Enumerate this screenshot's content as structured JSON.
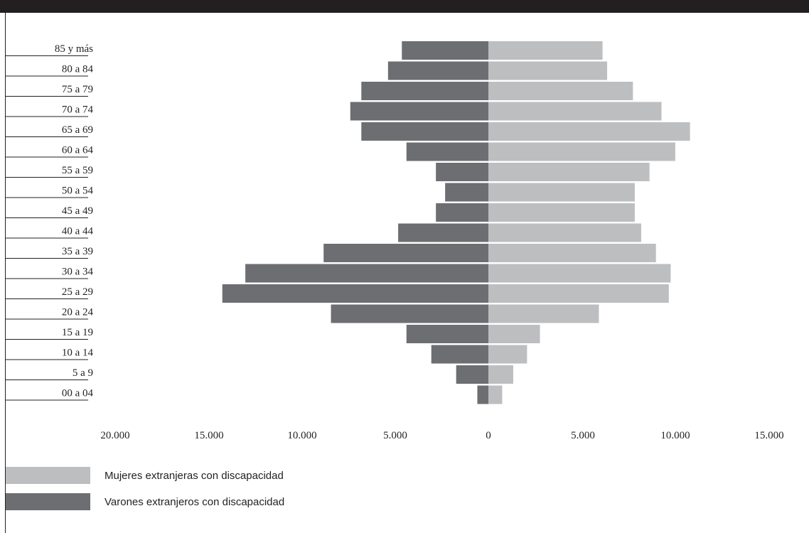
{
  "colors": {
    "female": "#bcbec0",
    "male": "#6d6e71",
    "text": "#231f20",
    "rule": "#231f20"
  },
  "legend": {
    "female_label": "Mujeres extranjeras con discapacidad",
    "male_label": "Varones extranjeros con discapacidad"
  },
  "chart_data": {
    "type": "bar",
    "orientation": "horizontal",
    "layout": "population-pyramid",
    "categories": [
      "85 y más",
      "80 a 84",
      "75 a 79",
      "70 a 74",
      "65 a 69",
      "60 a 64",
      "55 a 59",
      "50 a 54",
      "45 a 49",
      "40 a 44",
      "35 a 39",
      "30 a 34",
      "25 a 29",
      "20 a 24",
      "15 a 19",
      "10 a 14",
      "5 a 9",
      "00 a 04"
    ],
    "series": [
      {
        "name": "Mujeres extranjeras con discapacidad",
        "side": "right",
        "color": "#bcbec0",
        "values": [
          6200,
          6450,
          7850,
          9400,
          10950,
          10150,
          8750,
          7950,
          7950,
          8300,
          9100,
          9900,
          9800,
          6000,
          2800,
          2100,
          1350,
          750
        ]
      },
      {
        "name": "Varones extranjeros con discapacidad",
        "side": "left",
        "color": "#6d6e71",
        "values": [
          4700,
          5450,
          6900,
          7500,
          6900,
          4450,
          2850,
          2350,
          2850,
          4900,
          8950,
          13200,
          14450,
          8550,
          4450,
          3100,
          1750,
          600
        ]
      }
    ],
    "x_ticks": [
      "20.000",
      "15.000",
      "10.000",
      "5.000",
      "0",
      "5.000",
      "10.000",
      "15.000"
    ],
    "xlim": [
      -20000,
      15000
    ],
    "grid": false,
    "legend_position": "bottom-left"
  }
}
